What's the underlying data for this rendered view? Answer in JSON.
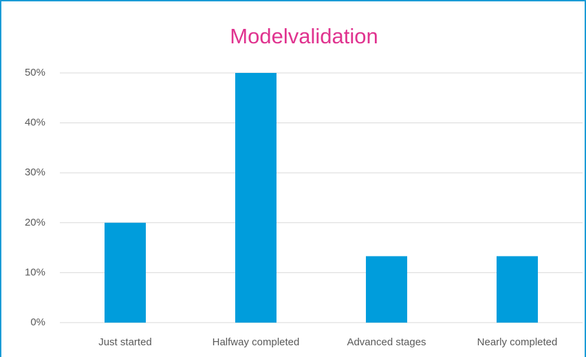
{
  "chart_data": {
    "type": "bar",
    "title": "Modelvalidation",
    "categories": [
      "Just started",
      "Halfway completed",
      "Advanced stages",
      "Nearly completed"
    ],
    "values": [
      20,
      50,
      13.3,
      13.3
    ],
    "color": "#009ddc",
    "ylim": [
      0,
      50
    ],
    "yticks": [
      {
        "value": 0,
        "label": "0%"
      },
      {
        "value": 10,
        "label": "10%"
      },
      {
        "value": 20,
        "label": "20%"
      },
      {
        "value": 30,
        "label": "30%"
      },
      {
        "value": 40,
        "label": "40%"
      },
      {
        "value": 50,
        "label": "50%"
      }
    ],
    "grid": true
  }
}
